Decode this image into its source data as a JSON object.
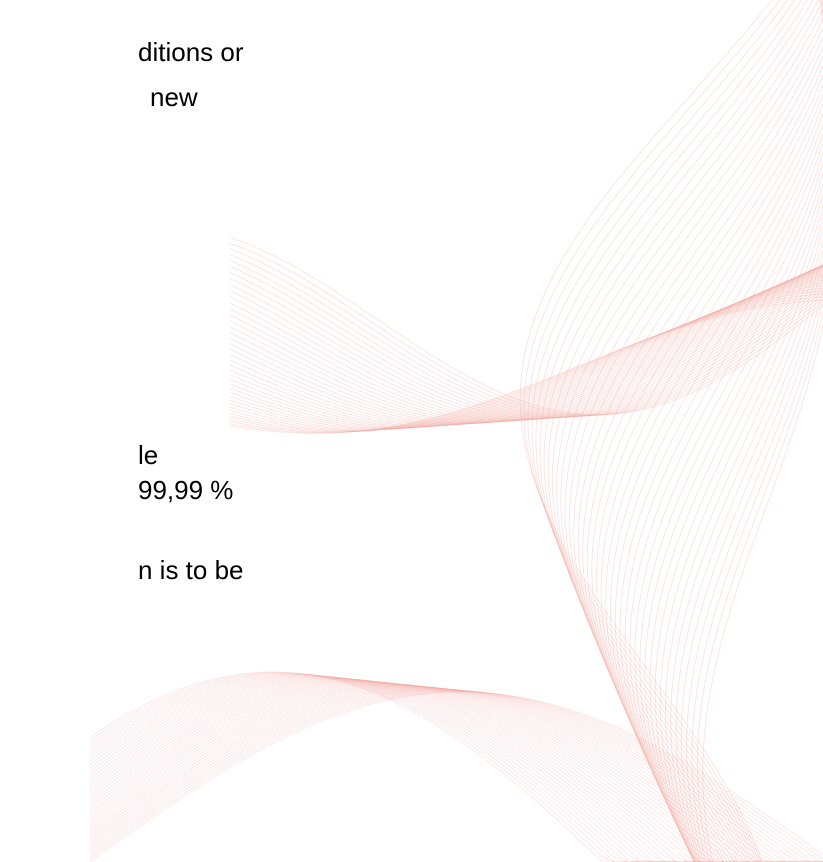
{
  "blocks": [
    {
      "lines": [
        "ditions or",
        "new"
      ]
    },
    {
      "lines": [
        "le",
        "99,99 %"
      ]
    },
    {
      "lines": [
        "n is to be"
      ]
    }
  ]
}
